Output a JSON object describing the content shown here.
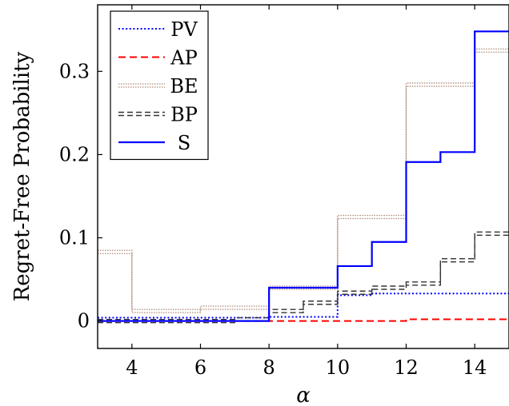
{
  "chart_data": {
    "type": "line",
    "step": true,
    "xlabel": "α",
    "ylabel": "Regret-Free Probability",
    "xlim": [
      3,
      15
    ],
    "ylim": [
      -0.033,
      0.38
    ],
    "xticks": [
      4,
      6,
      8,
      10,
      12,
      14
    ],
    "yticks": [
      0,
      0.1,
      0.2,
      0.3
    ],
    "grid": false,
    "legend_position": "top-left",
    "series": [
      {
        "name": "PV",
        "color": "#0000ff",
        "style": "dotted",
        "x": [
          3,
          8,
          10,
          11,
          15
        ],
        "y": [
          0.004,
          0.005,
          0.031,
          0.033,
          0.033
        ]
      },
      {
        "name": "AP",
        "color": "#ff0000",
        "style": "dashed",
        "x": [
          3,
          10,
          12,
          15
        ],
        "y": [
          0.0,
          0.0,
          0.002,
          0.002
        ]
      },
      {
        "name": "BE",
        "color": "#b08a78",
        "style": "densely-dotted-double",
        "x": [
          3,
          4,
          6,
          8,
          10,
          12,
          14,
          15
        ],
        "y": [
          0.083,
          0.012,
          0.016,
          0.04,
          0.125,
          0.284,
          0.325,
          0.325
        ]
      },
      {
        "name": "BP",
        "color": "#333333",
        "style": "dashed-double",
        "x": [
          3,
          7,
          8,
          9,
          10,
          11,
          12,
          13,
          14,
          15
        ],
        "y": [
          0.0,
          0.002,
          0.012,
          0.022,
          0.034,
          0.04,
          0.045,
          0.073,
          0.105,
          0.105
        ]
      },
      {
        "name": "S",
        "color": "#0000ff",
        "style": "solid",
        "x": [
          3,
          8,
          10,
          11,
          12,
          13,
          14,
          15
        ],
        "y": [
          0.0,
          0.04,
          0.066,
          0.095,
          0.191,
          0.203,
          0.348,
          0.348
        ]
      }
    ]
  }
}
